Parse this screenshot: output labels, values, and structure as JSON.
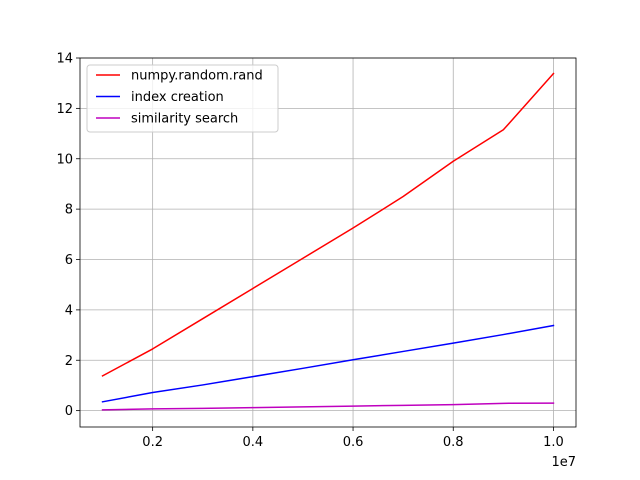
{
  "chart_data": {
    "type": "line",
    "title": "",
    "xlabel": "",
    "ylabel": "",
    "x_offset_text": "1e7",
    "x_scale_factor": 10000000,
    "xlim": [
      0.055,
      1.045
    ],
    "ylim": [
      -0.65,
      14
    ],
    "x_ticks": [
      0.2,
      0.4,
      0.6,
      0.8,
      1.0
    ],
    "x_tick_labels": [
      "0.2",
      "0.4",
      "0.6",
      "0.8",
      "1.0"
    ],
    "y_ticks": [
      0,
      2,
      4,
      6,
      8,
      10,
      12,
      14
    ],
    "y_tick_labels": [
      "0",
      "2",
      "4",
      "6",
      "8",
      "10",
      "12",
      "14"
    ],
    "grid": true,
    "legend_position": "upper-left",
    "x": [
      0.1,
      0.2,
      0.3,
      0.4,
      0.5,
      0.6,
      0.7,
      0.8,
      0.9,
      1.0
    ],
    "series": [
      {
        "name": "numpy.random.rand",
        "color": "#ff0000",
        "values": [
          1.38,
          2.45,
          3.65,
          4.85,
          6.05,
          7.25,
          8.5,
          9.9,
          11.15,
          13.38
        ]
      },
      {
        "name": "index creation",
        "color": "#0000ff",
        "values": [
          0.35,
          0.72,
          1.02,
          1.35,
          1.68,
          2.02,
          2.35,
          2.68,
          3.02,
          3.38
        ]
      },
      {
        "name": "similarity search",
        "color": "#bf00bf",
        "values": [
          0.03,
          0.07,
          0.09,
          0.12,
          0.15,
          0.18,
          0.21,
          0.24,
          0.29,
          0.3
        ]
      }
    ]
  }
}
